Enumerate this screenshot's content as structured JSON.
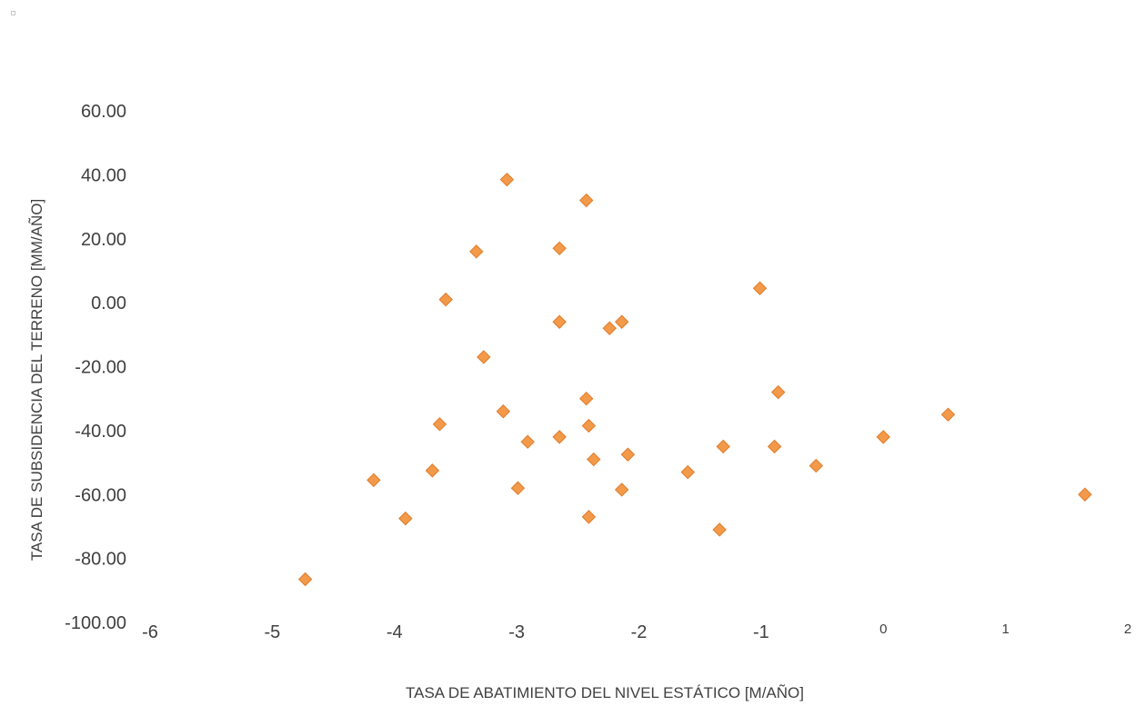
{
  "chart_data": {
    "type": "scatter",
    "title": "",
    "xlabel": "TASA DE ABATIMIENTO DEL NIVEL ESTÁTICO [M/AÑO]",
    "ylabel": "TASA DE SUBSIDENCIA DEL TERRENO [MM/AÑO]",
    "xlim": [
      -6,
      2
    ],
    "ylim": [
      -100,
      60
    ],
    "x_ticks": [
      "-6",
      "-5",
      "-4",
      "-3",
      "-2",
      "-1",
      "0",
      "1",
      "2"
    ],
    "y_ticks": [
      "60.00",
      "40.00",
      "20.00",
      "0.00",
      "-20.00",
      "-40.00",
      "-60.00",
      "-80.00",
      "-100.00"
    ],
    "grid": false,
    "marker_color": "#f29a4a",
    "marker_edge_color": "#e07b2a",
    "points": [
      {
        "x": -3.08,
        "y": 38.5
      },
      {
        "x": -2.43,
        "y": 32.0
      },
      {
        "x": -2.65,
        "y": 17.0
      },
      {
        "x": -3.33,
        "y": 16.0
      },
      {
        "x": -3.58,
        "y": 1.0
      },
      {
        "x": -1.01,
        "y": 4.5
      },
      {
        "x": -2.65,
        "y": -6.0
      },
      {
        "x": -2.14,
        "y": -6.0
      },
      {
        "x": -2.24,
        "y": -8.0
      },
      {
        "x": -3.27,
        "y": -17.0
      },
      {
        "x": -0.86,
        "y": -28.0
      },
      {
        "x": -2.43,
        "y": -30.0
      },
      {
        "x": -3.11,
        "y": -34.0
      },
      {
        "x": 0.53,
        "y": -35.0
      },
      {
        "x": -3.63,
        "y": -38.0
      },
      {
        "x": -2.41,
        "y": -38.5
      },
      {
        "x": -2.65,
        "y": -42.0
      },
      {
        "x": 0.0,
        "y": -42.0
      },
      {
        "x": -2.91,
        "y": -43.5
      },
      {
        "x": -1.31,
        "y": -45.0
      },
      {
        "x": -0.89,
        "y": -45.0
      },
      {
        "x": -2.09,
        "y": -47.5
      },
      {
        "x": -2.37,
        "y": -49.0
      },
      {
        "x": -0.55,
        "y": -51.0
      },
      {
        "x": -3.69,
        "y": -52.5
      },
      {
        "x": -1.6,
        "y": -53.0
      },
      {
        "x": -4.17,
        "y": -55.5
      },
      {
        "x": -2.99,
        "y": -58.0
      },
      {
        "x": -2.14,
        "y": -58.5
      },
      {
        "x": 1.65,
        "y": -60.0
      },
      {
        "x": -2.41,
        "y": -67.0
      },
      {
        "x": -3.91,
        "y": -67.5
      },
      {
        "x": -1.34,
        "y": -71.0
      },
      {
        "x": -4.73,
        "y": -86.5
      }
    ]
  }
}
